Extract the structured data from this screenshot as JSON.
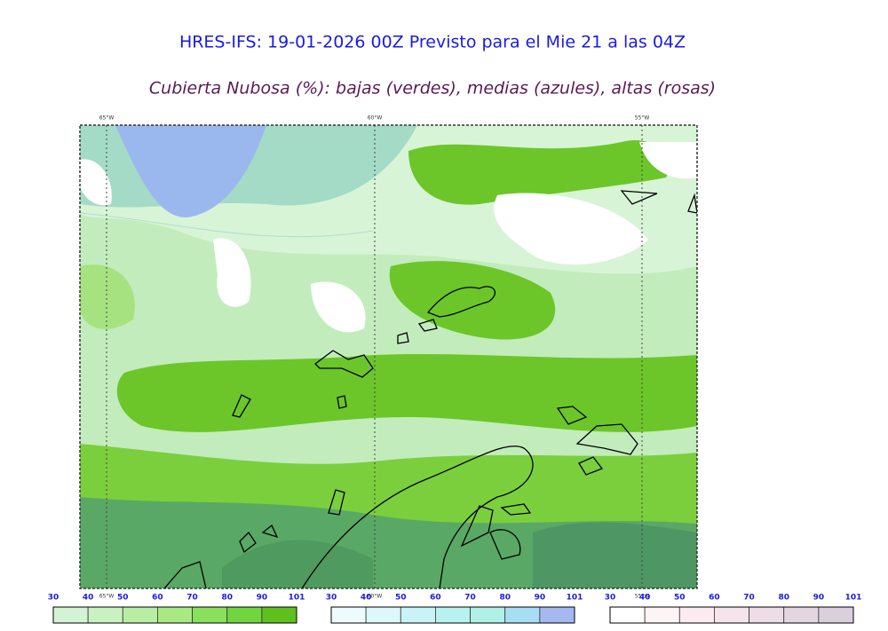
{
  "header": {
    "title": "HRES-IFS: 19-01-2026 00Z Previsto para el Mie 21 a las 04Z",
    "subtitle": "Cubierta Nubosa (%): bajas (verdes), medias (azules), altas (rosas)"
  },
  "map": {
    "lon_labels_top": [
      "65°W",
      "60°W",
      "55°W"
    ],
    "lon_labels_bottom": [
      "65°W",
      "60°W",
      "55°W"
    ]
  },
  "colorbars": [
    {
      "ticks": [
        30,
        40,
        50,
        60,
        70,
        80,
        90,
        101
      ],
      "colors": [
        "#d4f2d4",
        "#c8f2c0",
        "#b8eea4",
        "#a9e984",
        "#88e05c",
        "#70d53e",
        "#5fbf1c"
      ]
    },
    {
      "ticks": [
        30,
        40,
        50,
        60,
        70,
        80,
        90,
        101
      ],
      "colors": [
        "#eefbfd",
        "#dcf8fb",
        "#c8f4f7",
        "#b8f2f0",
        "#b0f0e6",
        "#a8def4",
        "#a6b8f0"
      ]
    },
    {
      "ticks": [
        30,
        40,
        50,
        60,
        70,
        80,
        90,
        101
      ],
      "colors": [
        "#ffffff",
        "#fdf4f6",
        "#fbebf1",
        "#f5e4ec",
        "#ecdde6",
        "#e3d6e1",
        "#dad0dc"
      ]
    }
  ]
}
